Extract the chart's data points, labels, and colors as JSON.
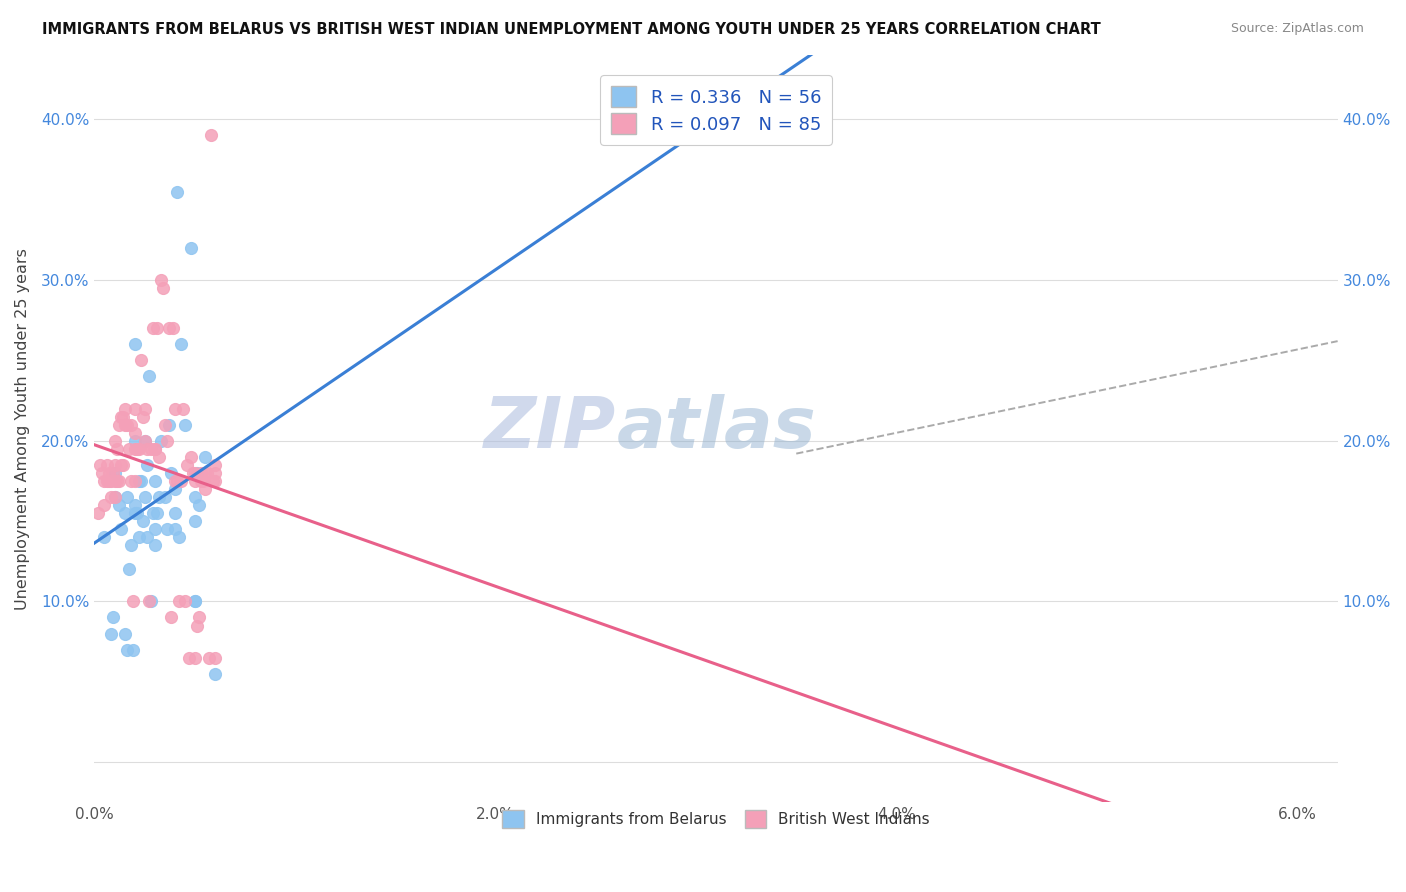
{
  "title": "IMMIGRANTS FROM BELARUS VS BRITISH WEST INDIAN UNEMPLOYMENT AMONG YOUTH UNDER 25 YEARS CORRELATION CHART",
  "source": "Source: ZipAtlas.com",
  "ylabel": "Unemployment Among Youth under 25 years",
  "xlim": [
    0.0,
    0.062
  ],
  "ylim": [
    -0.025,
    0.44
  ],
  "xticks": [
    0.0,
    0.01,
    0.02,
    0.03,
    0.04,
    0.05,
    0.06
  ],
  "xticklabels": [
    "0.0%",
    "",
    "2.0%",
    "",
    "4.0%",
    "",
    "6.0%"
  ],
  "yticks": [
    0.0,
    0.1,
    0.2,
    0.3,
    0.4
  ],
  "yticklabels": [
    "",
    "10.0%",
    "20.0%",
    "30.0%",
    "40.0%"
  ],
  "blue_color": "#8EC4F0",
  "pink_color": "#F4A0B8",
  "blue_line_color": "#3A7FD5",
  "pink_line_color": "#E8608A",
  "dashed_line_color": "#AAAAAA",
  "R_blue": 0.336,
  "N_blue": 56,
  "R_pink": 0.097,
  "N_pink": 85,
  "legend_label_blue": "Immigrants from Belarus",
  "legend_label_pink": "British West Indians",
  "blue_scatter_x": [
    0.0005,
    0.0008,
    0.0009,
    0.001,
    0.001,
    0.0012,
    0.0013,
    0.0015,
    0.0015,
    0.0016,
    0.0016,
    0.0017,
    0.0018,
    0.0019,
    0.002,
    0.002,
    0.002,
    0.002,
    0.0021,
    0.0022,
    0.0022,
    0.0023,
    0.0024,
    0.0025,
    0.0025,
    0.0026,
    0.0026,
    0.0027,
    0.0028,
    0.0029,
    0.003,
    0.003,
    0.003,
    0.0031,
    0.0032,
    0.0033,
    0.0035,
    0.0036,
    0.0037,
    0.0038,
    0.004,
    0.004,
    0.004,
    0.0041,
    0.0042,
    0.0043,
    0.0045,
    0.0048,
    0.005,
    0.005,
    0.005,
    0.005,
    0.0051,
    0.0052,
    0.0055,
    0.006
  ],
  "blue_scatter_y": [
    0.14,
    0.08,
    0.09,
    0.165,
    0.18,
    0.16,
    0.145,
    0.155,
    0.08,
    0.165,
    0.07,
    0.12,
    0.135,
    0.07,
    0.16,
    0.155,
    0.2,
    0.26,
    0.155,
    0.175,
    0.14,
    0.175,
    0.15,
    0.165,
    0.2,
    0.185,
    0.14,
    0.24,
    0.1,
    0.155,
    0.175,
    0.145,
    0.135,
    0.155,
    0.165,
    0.2,
    0.165,
    0.145,
    0.21,
    0.18,
    0.17,
    0.155,
    0.145,
    0.355,
    0.14,
    0.26,
    0.21,
    0.32,
    0.165,
    0.15,
    0.1,
    0.1,
    0.18,
    0.16,
    0.19,
    0.055
  ],
  "pink_scatter_x": [
    0.0002,
    0.0003,
    0.0004,
    0.0005,
    0.0005,
    0.0006,
    0.0006,
    0.0007,
    0.0007,
    0.0008,
    0.0008,
    0.0009,
    0.001,
    0.001,
    0.001,
    0.001,
    0.0011,
    0.0011,
    0.0012,
    0.0012,
    0.0013,
    0.0013,
    0.0014,
    0.0014,
    0.0015,
    0.0015,
    0.0016,
    0.0017,
    0.0018,
    0.0018,
    0.0019,
    0.002,
    0.002,
    0.002,
    0.002,
    0.0021,
    0.0022,
    0.0023,
    0.0024,
    0.0025,
    0.0025,
    0.0026,
    0.0027,
    0.0028,
    0.0029,
    0.003,
    0.003,
    0.0031,
    0.0032,
    0.0033,
    0.0034,
    0.0035,
    0.0036,
    0.0037,
    0.0038,
    0.0039,
    0.004,
    0.004,
    0.0041,
    0.0042,
    0.0043,
    0.0044,
    0.0045,
    0.0046,
    0.0047,
    0.0048,
    0.0049,
    0.005,
    0.005,
    0.005,
    0.0051,
    0.0052,
    0.0053,
    0.0053,
    0.0054,
    0.0055,
    0.0055,
    0.0056,
    0.0057,
    0.0058,
    0.0059,
    0.006,
    0.006,
    0.006,
    0.006
  ],
  "pink_scatter_y": [
    0.155,
    0.185,
    0.18,
    0.175,
    0.16,
    0.175,
    0.185,
    0.18,
    0.175,
    0.175,
    0.165,
    0.18,
    0.175,
    0.165,
    0.185,
    0.2,
    0.195,
    0.175,
    0.175,
    0.21,
    0.185,
    0.215,
    0.215,
    0.185,
    0.21,
    0.22,
    0.21,
    0.195,
    0.21,
    0.175,
    0.1,
    0.195,
    0.205,
    0.175,
    0.22,
    0.195,
    0.195,
    0.25,
    0.215,
    0.2,
    0.22,
    0.195,
    0.1,
    0.195,
    0.27,
    0.195,
    0.195,
    0.27,
    0.19,
    0.3,
    0.295,
    0.21,
    0.2,
    0.27,
    0.09,
    0.27,
    0.175,
    0.22,
    0.175,
    0.1,
    0.175,
    0.22,
    0.1,
    0.185,
    0.065,
    0.19,
    0.18,
    0.065,
    0.175,
    0.18,
    0.085,
    0.09,
    0.175,
    0.18,
    0.175,
    0.18,
    0.17,
    0.18,
    0.065,
    0.39,
    0.175,
    0.065,
    0.18,
    0.175,
    0.185
  ],
  "background_color": "#FFFFFF",
  "grid_color": "#DDDDDD",
  "watermark_text1": "ZIP",
  "watermark_text2": "atlas",
  "watermark_color1": "#AABBDD",
  "watermark_color2": "#88AACC"
}
